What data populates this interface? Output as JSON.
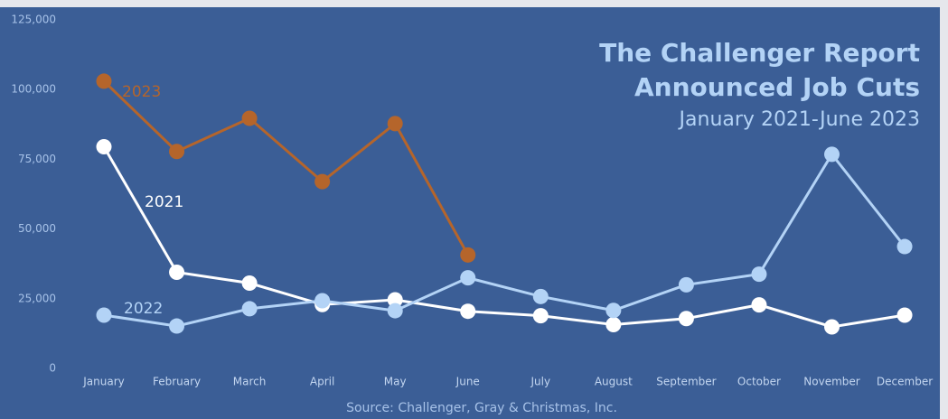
{
  "chart_data": {
    "type": "line",
    "title": "The Challenger Report",
    "subtitle": "Announced Job Cuts",
    "period": "January 2021-June 2023",
    "source": "Source: Challenger, Gray & Christmas, Inc.",
    "categories": [
      "January",
      "February",
      "March",
      "April",
      "May",
      "June",
      "July",
      "August",
      "September",
      "October",
      "November",
      "December"
    ],
    "series": [
      {
        "name": "2023",
        "color": "#b5652b",
        "values": [
          103000,
          77800,
          89700,
          67000,
          87800,
          40700,
          null,
          null,
          null,
          null,
          null,
          null
        ]
      },
      {
        "name": "2021",
        "color": "#ffffff",
        "values": [
          79500,
          34500,
          30600,
          22900,
          24600,
          20500,
          18900,
          15700,
          17900,
          22800,
          14900,
          19100
        ]
      },
      {
        "name": "2022",
        "color": "#b3d3f6",
        "values": [
          19100,
          15200,
          21400,
          24300,
          20700,
          32500,
          25800,
          20800,
          30000,
          33800,
          76800,
          43700
        ]
      }
    ],
    "ylim": [
      0,
      125000
    ],
    "yticks": [
      0,
      {
        "value": 25000,
        "label": "25,000"
      },
      {
        "value": 50000,
        "label": "50,000"
      },
      {
        "value": 75000,
        "label": "75,000"
      },
      {
        "value": 100000,
        "label": "100,000"
      },
      {
        "value": 125000,
        "label": "125,000"
      }
    ],
    "grid": false
  }
}
